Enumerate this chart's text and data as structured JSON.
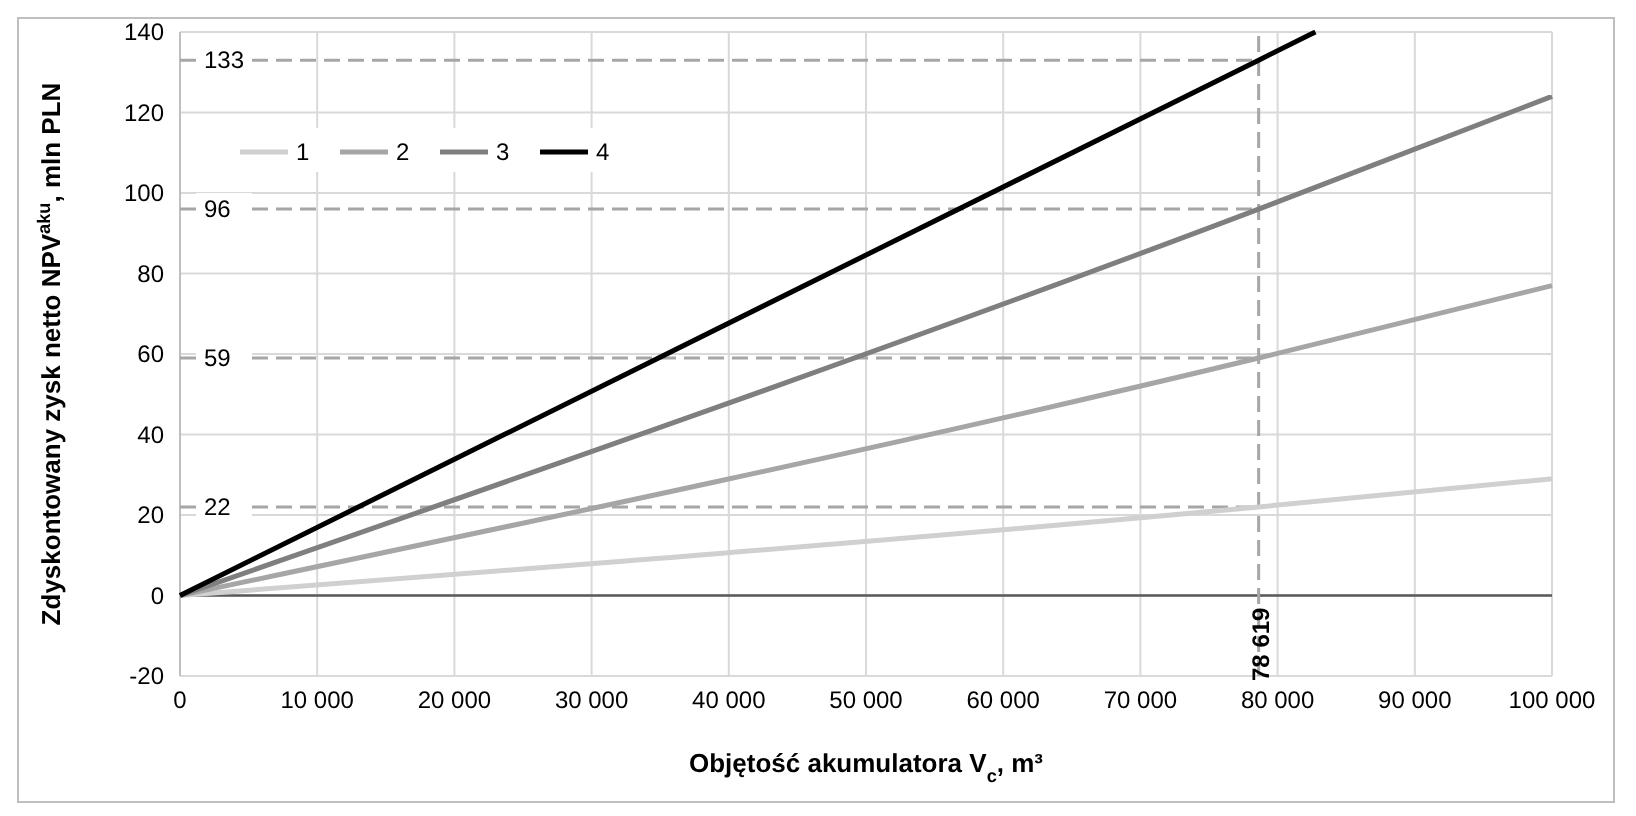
{
  "chart_data": {
    "type": "line",
    "xlabel": "Objętość akumulatora V$_{c}$, m³",
    "ylabel": "Zdyskontowany zysk netto NPV$^{aku}$, mln PLN",
    "series": [
      {
        "name": "1",
        "color": "#d0d0d0",
        "x": [
          0,
          78619,
          100000
        ],
        "values": [
          0,
          22,
          29
        ]
      },
      {
        "name": "2",
        "color": "#a6a6a6",
        "x": [
          0,
          78619,
          100000
        ],
        "values": [
          0,
          59,
          77
        ]
      },
      {
        "name": "3",
        "color": "#7f7f7f",
        "x": [
          0,
          78619,
          100000
        ],
        "values": [
          0,
          96,
          124
        ]
      },
      {
        "name": "4",
        "color": "#000000",
        "x": [
          0,
          78619,
          82757
        ],
        "values": [
          0,
          133,
          140
        ]
      }
    ],
    "xlim": [
      0,
      100000
    ],
    "xticks": [
      {
        "value": 0,
        "label": "0"
      },
      {
        "value": 10000,
        "label": "10 000"
      },
      {
        "value": 20000,
        "label": "20 000"
      },
      {
        "value": 30000,
        "label": "30 000"
      },
      {
        "value": 40000,
        "label": "40 000"
      },
      {
        "value": 50000,
        "label": "50 000"
      },
      {
        "value": 60000,
        "label": "60 000"
      },
      {
        "value": 70000,
        "label": "70 000"
      },
      {
        "value": 80000,
        "label": "80 000"
      },
      {
        "value": 90000,
        "label": "90 000"
      },
      {
        "value": 100000,
        "label": "100 000"
      }
    ],
    "ylim": [
      -20,
      140
    ],
    "yticks": [
      -20,
      0,
      20,
      40,
      60,
      80,
      100,
      120,
      140
    ],
    "ref_lines": [
      {
        "axis": "y",
        "value": 22,
        "label": "22",
        "color": "#a6a6a6",
        "line_style": "dashed"
      },
      {
        "axis": "y",
        "value": 59,
        "label": "59",
        "color": "#a6a6a6",
        "line_style": "dashed"
      },
      {
        "axis": "y",
        "value": 96,
        "label": "96",
        "color": "#a6a6a6",
        "line_style": "dashed"
      },
      {
        "axis": "y",
        "value": 133,
        "label": "133",
        "color": "#a6a6a6",
        "line_style": "dashed"
      },
      {
        "axis": "x",
        "value": 78619,
        "label": "78 619",
        "color": "#a6a6a6",
        "line_style": "dashed"
      }
    ],
    "grid": true,
    "legend": "top left",
    "marker": "none",
    "line_style": "solid"
  }
}
